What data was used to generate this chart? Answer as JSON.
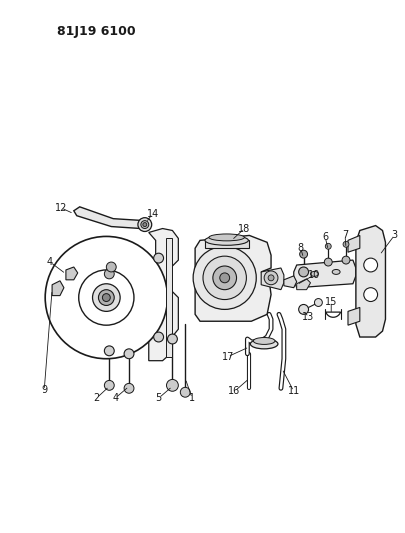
{
  "title": "81J19 6100",
  "bg_color": "#ffffff",
  "line_color": "#1a1a1a",
  "fig_width": 4.06,
  "fig_height": 5.33,
  "dpi": 100
}
